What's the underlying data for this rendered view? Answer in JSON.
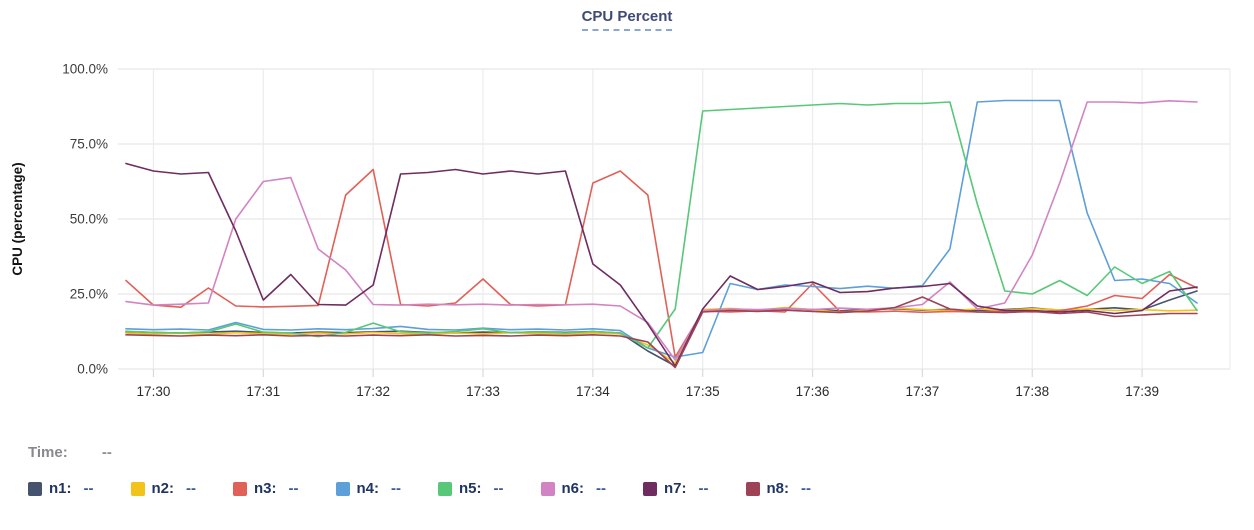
{
  "title": "CPU Percent",
  "time_row": {
    "label": "Time:",
    "value": "--"
  },
  "legend": {
    "items": [
      {
        "id": "n1",
        "label": "n1:",
        "value": "--",
        "color": "#46536e"
      },
      {
        "id": "n2",
        "label": "n2:",
        "value": "--",
        "color": "#f2c31a"
      },
      {
        "id": "n3",
        "label": "n3:",
        "value": "--",
        "color": "#e06158"
      },
      {
        "id": "n4",
        "label": "n4:",
        "value": "--",
        "color": "#5d9fd9"
      },
      {
        "id": "n5",
        "label": "n5:",
        "value": "--",
        "color": "#57c878"
      },
      {
        "id": "n6",
        "label": "n6:",
        "value": "--",
        "color": "#d283c4"
      },
      {
        "id": "n7",
        "label": "n7:",
        "value": "--",
        "color": "#6e2c60"
      },
      {
        "id": "n8",
        "label": "n8:",
        "value": "--",
        "color": "#9e4355"
      }
    ]
  },
  "chart_data": {
    "type": "line",
    "title": "CPU Percent",
    "xlabel": "",
    "ylabel": "CPU (percentage)",
    "ylim": [
      0,
      100
    ],
    "grid": true,
    "legend_position": "bottom",
    "y_ticks": [
      {
        "value": 0,
        "label": "0.0%"
      },
      {
        "value": 25,
        "label": "25.0%"
      },
      {
        "value": 50,
        "label": "50.0%"
      },
      {
        "value": 75,
        "label": "75.0%"
      },
      {
        "value": 100,
        "label": "100.0%"
      }
    ],
    "x_ticks": [
      {
        "minute": 30,
        "label": "17:30"
      },
      {
        "minute": 31,
        "label": "17:31"
      },
      {
        "minute": 32,
        "label": "17:32"
      },
      {
        "minute": 33,
        "label": "17:33"
      },
      {
        "minute": 34,
        "label": "17:34"
      },
      {
        "minute": 35,
        "label": "17:35"
      },
      {
        "minute": 36,
        "label": "17:36"
      },
      {
        "minute": 37,
        "label": "17:37"
      },
      {
        "minute": 38,
        "label": "17:38"
      },
      {
        "minute": 39,
        "label": "17:39"
      }
    ],
    "x_domain_minutes": [
      29.65,
      39.8
    ],
    "x_minutes": [
      29.75,
      30,
      30.25,
      30.5,
      30.75,
      31,
      31.25,
      31.5,
      31.75,
      32,
      32.25,
      32.5,
      32.75,
      33,
      33.25,
      33.5,
      33.75,
      34,
      34.25,
      34.5,
      34.75,
      35,
      35.25,
      35.5,
      35.75,
      36,
      36.25,
      36.5,
      36.75,
      37,
      37.25,
      37.5,
      37.75,
      38,
      38.25,
      38.5,
      38.75,
      39,
      39.25,
      39.5
    ],
    "series": [
      {
        "name": "n1",
        "color": "#46536e",
        "values": [
          12.4,
          12.2,
          12.0,
          12.3,
          12.6,
          12.2,
          12.0,
          12.3,
          12.1,
          12.4,
          12.6,
          12.2,
          12.0,
          12.3,
          12.1,
          12.4,
          12.2,
          12.5,
          12.0,
          6.0,
          1.0,
          19.5,
          20.0,
          19.6,
          20.2,
          19.8,
          19.4,
          19.8,
          20.1,
          19.6,
          19.9,
          19.5,
          19.8,
          20.3,
          19.6,
          19.9,
          20.4,
          19.7,
          23.0,
          26.0
        ]
      },
      {
        "name": "n2",
        "color": "#f2c31a",
        "values": [
          12.0,
          11.7,
          11.9,
          11.6,
          12.1,
          11.8,
          11.6,
          12.0,
          11.7,
          12.2,
          11.8,
          11.6,
          12.0,
          11.7,
          12.1,
          11.8,
          11.6,
          12.0,
          11.7,
          8.0,
          2.0,
          19.8,
          20.2,
          19.6,
          20.5,
          19.8,
          18.9,
          19.6,
          20.3,
          19.8,
          19.5,
          20.0,
          19.6,
          20.1,
          19.7,
          20.0,
          19.5,
          19.8,
          19.4,
          19.6
        ]
      },
      {
        "name": "n3",
        "color": "#e06158",
        "values": [
          29.5,
          21.3,
          20.6,
          27.0,
          21.0,
          20.7,
          20.9,
          21.2,
          58.0,
          66.5,
          21.5,
          21.0,
          22.0,
          30.0,
          21.5,
          21.0,
          21.4,
          62.0,
          66.0,
          58.0,
          4.0,
          19.3,
          19.0,
          19.4,
          19.0,
          28.5,
          19.2,
          19.0,
          19.3,
          18.9,
          19.2,
          19.0,
          19.3,
          19.0,
          19.4,
          21.0,
          24.5,
          23.5,
          31.5,
          27.0
        ]
      },
      {
        "name": "n4",
        "color": "#5d9fd9",
        "values": [
          13.4,
          13.1,
          13.3,
          13.0,
          15.5,
          13.2,
          13.0,
          13.4,
          13.1,
          13.5,
          14.2,
          13.2,
          13.0,
          13.6,
          13.1,
          13.3,
          13.0,
          13.4,
          12.8,
          7.0,
          4.0,
          5.5,
          28.5,
          26.5,
          28.0,
          27.5,
          26.8,
          27.6,
          26.9,
          27.8,
          40.0,
          89.0,
          89.5,
          89.5,
          89.5,
          52.0,
          29.5,
          30.0,
          28.5,
          22.0
        ]
      },
      {
        "name": "n5",
        "color": "#57c878",
        "values": [
          12.6,
          12.2,
          12.0,
          12.4,
          15.0,
          12.3,
          12.0,
          10.8,
          12.2,
          15.3,
          12.4,
          12.0,
          12.5,
          13.4,
          12.1,
          12.4,
          12.0,
          12.5,
          12.0,
          7.0,
          20.0,
          86.0,
          86.5,
          87.0,
          87.5,
          88.0,
          88.5,
          88.0,
          88.5,
          88.5,
          89.0,
          55.0,
          26.0,
          25.0,
          29.5,
          24.5,
          34.0,
          28.5,
          32.5,
          19.5
        ]
      },
      {
        "name": "n6",
        "color": "#d283c4",
        "values": [
          22.5,
          21.3,
          21.6,
          22.0,
          50.0,
          62.5,
          63.8,
          40.0,
          33.0,
          21.5,
          21.3,
          21.6,
          21.4,
          21.6,
          21.3,
          21.5,
          21.4,
          21.6,
          21.0,
          15.5,
          3.0,
          19.5,
          20.0,
          19.8,
          20.2,
          19.8,
          20.3,
          19.9,
          20.4,
          21.5,
          29.0,
          20.0,
          22.0,
          38.0,
          62.0,
          89.0,
          89.0,
          88.7,
          89.4,
          89.0
        ]
      },
      {
        "name": "n7",
        "color": "#6e2c60",
        "values": [
          68.5,
          66.0,
          65.0,
          65.5,
          46.0,
          23.0,
          31.5,
          21.5,
          21.3,
          28.0,
          65.0,
          65.5,
          66.5,
          65.0,
          66.0,
          65.0,
          66.0,
          35.0,
          28.0,
          15.0,
          1.0,
          20.0,
          31.0,
          26.5,
          27.5,
          29.0,
          25.5,
          25.8,
          27.0,
          27.5,
          28.5,
          21.0,
          19.5,
          19.5,
          19.0,
          19.5,
          18.5,
          19.5,
          26.0,
          27.3
        ]
      },
      {
        "name": "n8",
        "color": "#9e4355",
        "values": [
          11.4,
          11.2,
          11.0,
          11.3,
          11.1,
          11.4,
          11.0,
          11.2,
          11.0,
          11.3,
          11.1,
          11.4,
          11.0,
          11.2,
          11.0,
          11.3,
          11.1,
          11.4,
          11.0,
          9.0,
          0.5,
          19.0,
          19.5,
          19.2,
          19.6,
          19.2,
          18.8,
          19.3,
          20.5,
          24.0,
          20.0,
          19.0,
          18.8,
          19.2,
          18.5,
          19.0,
          17.5,
          18.0,
          18.5,
          18.5
        ]
      }
    ],
    "style": {
      "h_grid_color": "#e8e8e8",
      "v_grid_color": "#ececec",
      "tick_stub_color": "#d9d9d9",
      "tick_label_color": "#3c3c3c",
      "x_label_color": "#2b2b2b",
      "axis_title_color": "#141414"
    }
  }
}
